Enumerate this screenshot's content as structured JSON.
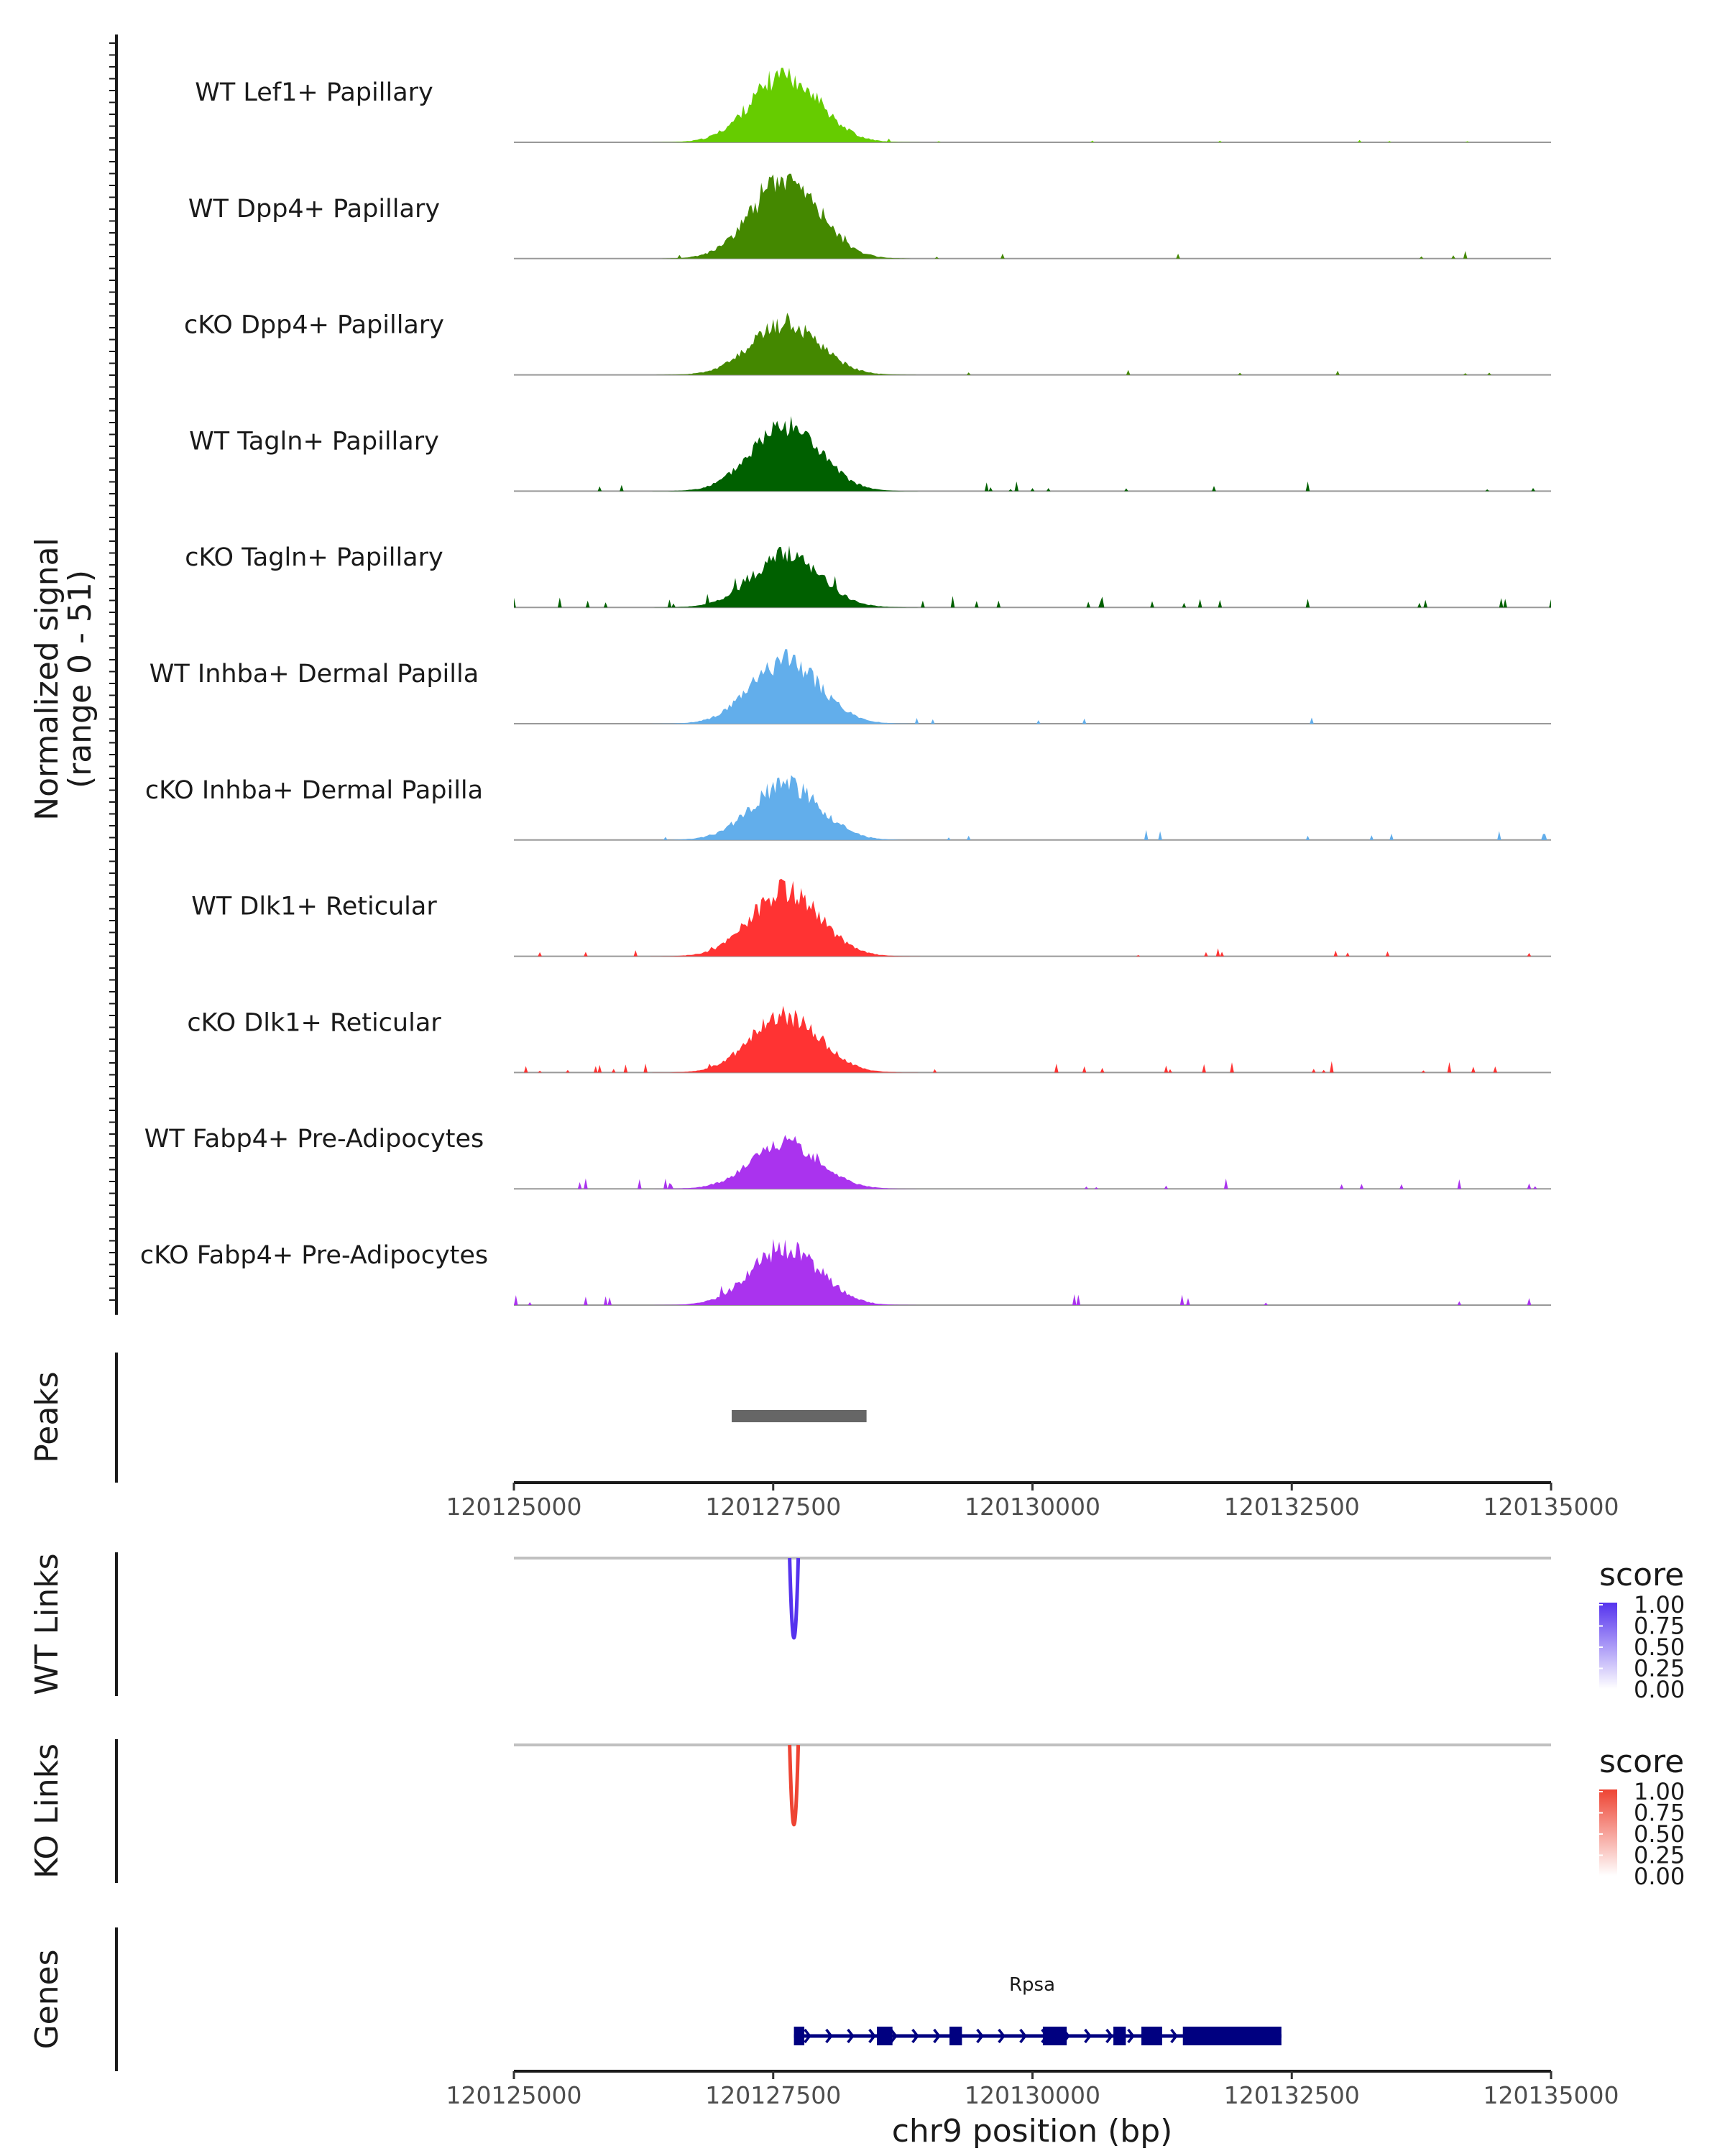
{
  "chart_data": {
    "type": "area",
    "region": {
      "chrom": "chr9",
      "start": 120125000,
      "end": 120135000
    },
    "coverage": {
      "ylabel_line1": "Normalized signal",
      "ylabel_line2": "(range 0 - 51)",
      "ylim": [
        0,
        51
      ],
      "tracks": [
        {
          "name": "WT Lef1+ Papillary",
          "color": "#66CC00",
          "peak": 44,
          "seed": 11,
          "bg": 0.15
        },
        {
          "name": "WT Dpp4+ Papillary",
          "color": "#448800",
          "peak": 51,
          "seed": 23,
          "bg": 0.35
        },
        {
          "name": "cKO Dpp4+ Papillary",
          "color": "#448800",
          "peak": 33,
          "seed": 37,
          "bg": 0.35
        },
        {
          "name": "WT Tagln+ Papillary",
          "color": "#006000",
          "peak": 43,
          "seed": 41,
          "bg": 0.45
        },
        {
          "name": "cKO Tagln+ Papillary",
          "color": "#006000",
          "peak": 34,
          "seed": 53,
          "bg": 0.55
        },
        {
          "name": "WT Inhba+ Dermal Papilla",
          "color": "#62AEEB",
          "peak": 41,
          "seed": 61,
          "bg": 0.3
        },
        {
          "name": "cKO Inhba+ Dermal Papilla",
          "color": "#62AEEB",
          "peak": 36,
          "seed": 73,
          "bg": 0.55
        },
        {
          "name": "WT Dlk1+ Reticular",
          "color": "#FF3333",
          "peak": 43,
          "seed": 83,
          "bg": 0.35
        },
        {
          "name": "cKO Dlk1+ Reticular",
          "color": "#FF3333",
          "peak": 37,
          "seed": 97,
          "bg": 0.5
        },
        {
          "name": "WT Fabp4+ Pre-Adipocytes",
          "color": "#AA33EE",
          "peak": 30,
          "seed": 101,
          "bg": 0.45
        },
        {
          "name": "cKO Fabp4+ Pre-Adipocytes",
          "color": "#AA33EE",
          "peak": 37,
          "seed": 113,
          "bg": 0.55
        }
      ]
    },
    "peaks": {
      "label": "Peaks",
      "intervals": [
        [
          120127100,
          120128400
        ]
      ],
      "color": "#666666"
    },
    "x_axis": {
      "title": "chr9 position (bp)",
      "ticks": [
        120125000,
        120127500,
        120130000,
        120132500,
        120135000
      ],
      "tick_labels": [
        "120125000",
        "120127500",
        "120130000",
        "120132500",
        "120135000"
      ]
    },
    "links": [
      {
        "label": "WT Links",
        "anchor": 120127700,
        "score": 1.0,
        "color": "#5533EE",
        "legend_title": "score",
        "legend_ticks": [
          "1.00",
          "0.75",
          "0.50",
          "0.25",
          "0.00"
        ]
      },
      {
        "label": "KO Links",
        "anchor": 120127700,
        "score": 1.0,
        "color": "#EE4433",
        "legend_title": "score",
        "legend_ticks": [
          "1.00",
          "0.75",
          "0.50",
          "0.25",
          "0.00"
        ]
      }
    ],
    "genes": {
      "label": "Genes",
      "gene": "Rpsa",
      "start": 120127700,
      "end": 120132400,
      "color": "#000080",
      "exons": [
        [
          120127700,
          120127800
        ],
        [
          120128500,
          120128650
        ],
        [
          120129200,
          120129320
        ],
        [
          120130100,
          120130330
        ],
        [
          120130780,
          120130900
        ],
        [
          120131050,
          120131250
        ],
        [
          120131450,
          120132400
        ]
      ]
    }
  }
}
